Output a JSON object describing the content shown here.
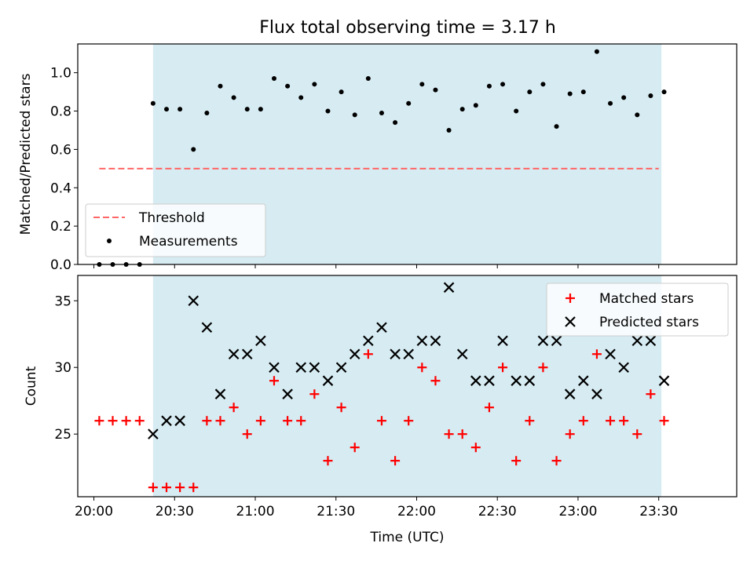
{
  "chart_data": [
    {
      "type": "scatter",
      "title": "Flux total observing time = 3.17 h",
      "xlabel": "",
      "ylabel": "Matched/Predicted stars",
      "ylim": [
        0,
        1.15
      ],
      "yticks": [
        "0.0",
        "0.2",
        "0.4",
        "0.6",
        "0.8",
        "1.0"
      ],
      "yticks_values": [
        0,
        0.2,
        0.4,
        0.6,
        0.8,
        1.0
      ],
      "shaded_region": {
        "x_start": "20:22",
        "x_end": "23:31",
        "color": "#add8e6"
      },
      "threshold": {
        "name": "Threshold",
        "y": 0.5,
        "x_start": "20:02",
        "x_end": "23:30",
        "color": "#ff6666"
      },
      "series": [
        {
          "name": "Measurements",
          "color": "#000000",
          "marker": "dot",
          "x": [
            "20:02",
            "20:07",
            "20:12",
            "20:17",
            "20:22",
            "20:27",
            "20:32",
            "20:37",
            "20:42",
            "20:47",
            "20:52",
            "20:57",
            "21:02",
            "21:07",
            "21:12",
            "21:17",
            "21:22",
            "21:27",
            "21:32",
            "21:37",
            "21:42",
            "21:47",
            "21:52",
            "21:57",
            "22:02",
            "22:07",
            "22:12",
            "22:17",
            "22:22",
            "22:27",
            "22:32",
            "22:37",
            "22:42",
            "22:47",
            "22:52",
            "22:57",
            "23:02",
            "23:07",
            "23:12",
            "23:17",
            "23:22",
            "23:27",
            "23:32"
          ],
          "y": [
            0,
            0,
            0,
            0,
            0.84,
            0.81,
            0.81,
            0.6,
            0.79,
            0.93,
            0.87,
            0.81,
            0.81,
            0.97,
            0.93,
            0.87,
            0.94,
            0.8,
            0.9,
            0.78,
            0.97,
            0.79,
            0.74,
            0.84,
            0.94,
            0.91,
            0.7,
            0.81,
            0.83,
            0.93,
            0.94,
            0.8,
            0.9,
            0.94,
            0.72,
            0.89,
            0.9,
            1.11,
            0.84,
            0.87,
            0.78,
            0.88,
            0.9
          ]
        }
      ],
      "legend": "lower-left"
    },
    {
      "type": "scatter",
      "title": "",
      "xlabel": "Time (UTC)",
      "ylabel": "Count",
      "ylim": [
        20.3,
        36.9
      ],
      "yticks": [
        "25",
        "30",
        "35"
      ],
      "yticks_values": [
        25,
        30,
        35
      ],
      "xlim": [
        "19:54",
        "23:59"
      ],
      "xticks": [
        "20:00",
        "20:30",
        "21:00",
        "21:30",
        "22:00",
        "22:30",
        "23:00",
        "23:30"
      ],
      "shaded_region": {
        "x_start": "20:22",
        "x_end": "23:31",
        "color": "#add8e6"
      },
      "series": [
        {
          "name": "Matched stars",
          "color": "#ff0000",
          "marker": "plus",
          "x": [
            "20:02",
            "20:07",
            "20:12",
            "20:17",
            "20:22",
            "20:27",
            "20:32",
            "20:37",
            "20:42",
            "20:47",
            "20:52",
            "20:57",
            "21:02",
            "21:07",
            "21:12",
            "21:17",
            "21:22",
            "21:27",
            "21:32",
            "21:37",
            "21:42",
            "21:47",
            "21:52",
            "21:57",
            "22:02",
            "22:07",
            "22:12",
            "22:17",
            "22:22",
            "22:27",
            "22:32",
            "22:37",
            "22:42",
            "22:47",
            "22:52",
            "22:57",
            "23:02",
            "23:07",
            "23:12",
            "23:17",
            "23:22",
            "23:27",
            "23:32"
          ],
          "y": [
            26,
            26,
            26,
            26,
            21,
            21,
            21,
            21,
            26,
            26,
            27,
            25,
            26,
            29,
            26,
            26,
            28,
            23,
            27,
            24,
            31,
            26,
            23,
            26,
            30,
            29,
            25,
            25,
            24,
            27,
            30,
            23,
            26,
            30,
            23,
            25,
            26,
            31,
            26,
            26,
            25,
            28,
            26
          ]
        },
        {
          "name": "Predicted stars",
          "color": "#000000",
          "marker": "x",
          "x": [
            "20:22",
            "20:27",
            "20:32",
            "20:37",
            "20:42",
            "20:47",
            "20:52",
            "20:57",
            "21:02",
            "21:07",
            "21:12",
            "21:17",
            "21:22",
            "21:27",
            "21:32",
            "21:37",
            "21:42",
            "21:47",
            "21:52",
            "21:57",
            "22:02",
            "22:07",
            "22:12",
            "22:17",
            "22:22",
            "22:27",
            "22:32",
            "22:37",
            "22:42",
            "22:47",
            "22:52",
            "22:57",
            "23:02",
            "23:07",
            "23:12",
            "23:17",
            "23:22",
            "23:27",
            "23:32"
          ],
          "y": [
            25,
            26,
            26,
            35,
            33,
            28,
            31,
            31,
            32,
            30,
            28,
            30,
            30,
            29,
            30,
            31,
            32,
            33,
            31,
            31,
            32,
            32,
            36,
            31,
            29,
            29,
            32,
            29,
            29,
            32,
            32,
            28,
            29,
            28,
            31,
            30,
            32,
            32,
            29
          ]
        }
      ],
      "legend": "top-right"
    }
  ]
}
